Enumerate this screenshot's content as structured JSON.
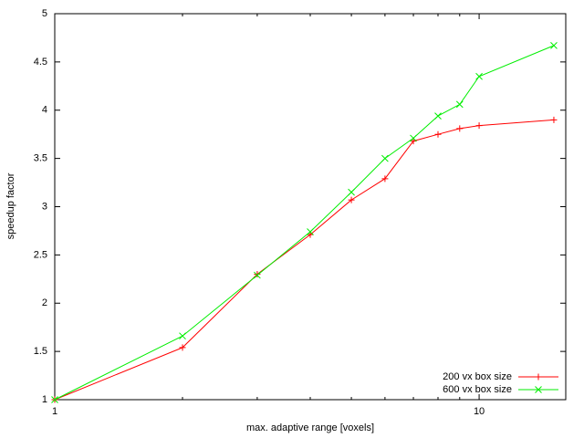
{
  "chart_data": {
    "type": "line",
    "x_label": "max. adaptive range [voxels]",
    "y_label": "speedup factor",
    "x": [
      1,
      2,
      3,
      4,
      5,
      6,
      7,
      8,
      9,
      10,
      15
    ],
    "series": [
      {
        "name": "200 vx box size",
        "color": "#ff0000",
        "marker": "plus",
        "values": [
          1,
          1.54,
          2.3,
          2.71,
          3.07,
          3.29,
          3.68,
          3.75,
          3.81,
          3.84,
          3.9
        ]
      },
      {
        "name": "600 vx box size",
        "color": "#00ee00",
        "marker": "cross",
        "values": [
          1,
          1.66,
          2.29,
          2.74,
          3.15,
          3.5,
          3.71,
          3.94,
          4.06,
          4.35,
          4.67
        ]
      }
    ],
    "xscale": "log",
    "xlim": [
      1,
      16
    ],
    "xticks": [
      1,
      10
    ],
    "xminorticks": [
      2,
      3,
      4,
      5,
      6,
      7,
      8,
      9
    ],
    "ylim": [
      1,
      5
    ],
    "yticks": [
      1,
      1.5,
      2,
      2.5,
      3,
      3.5,
      4,
      4.5,
      5
    ],
    "grid": false,
    "legend_position": "lower right"
  }
}
